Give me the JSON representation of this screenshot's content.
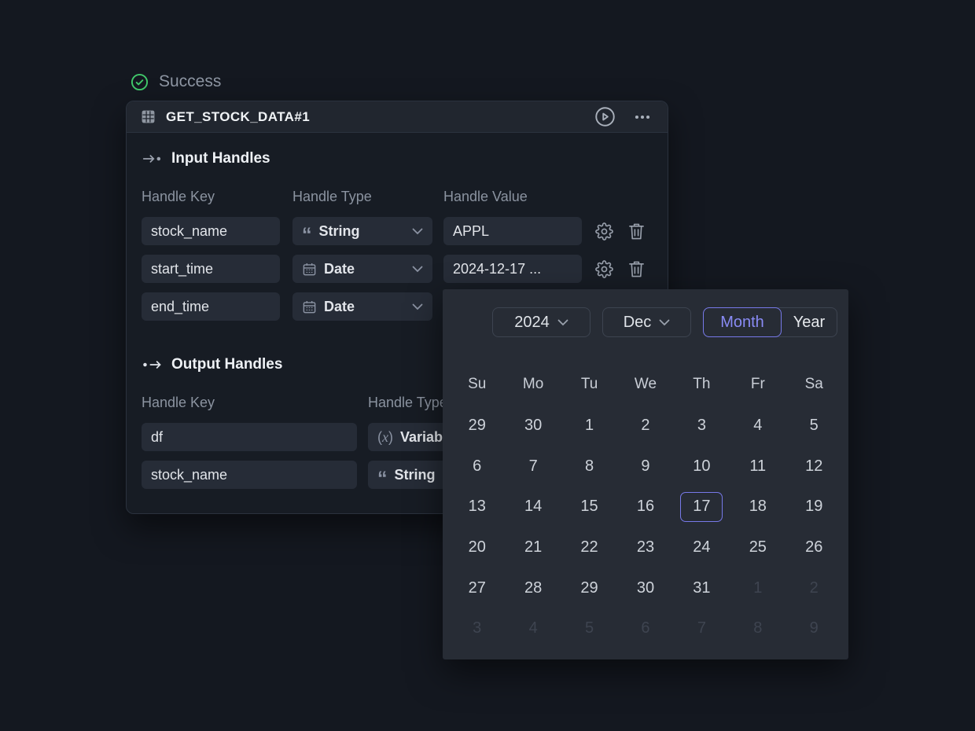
{
  "status": {
    "label": "Success",
    "icon": "check-circle-icon",
    "color": "#41c96b"
  },
  "node": {
    "title": "GET_STOCK_DATA#1",
    "title_icon": "table-icon",
    "toolbar": {
      "run_icon": "play-circle-icon",
      "more_icon": "ellipsis-icon"
    },
    "input_handles": {
      "heading": "Input Handles",
      "heading_icon": "arrow-to-dot-icon",
      "columns": [
        "Handle Key",
        "Handle Type",
        "Handle Value"
      ],
      "rows": [
        {
          "key": "stock_name",
          "type": "String",
          "type_icon": "quote-icon",
          "value": "APPL"
        },
        {
          "key": "start_time",
          "type": "Date",
          "type_icon": "calendar-icon",
          "value": "2024-12-17 ..."
        },
        {
          "key": "end_time",
          "type": "Date",
          "type_icon": "calendar-icon",
          "value": ""
        }
      ],
      "row_action_icons": [
        "gear-icon",
        "trash-icon"
      ]
    },
    "output_handles": {
      "heading": "Output Handles",
      "heading_icon": "dot-to-arrow-icon",
      "columns": [
        "Handle Key",
        "Handle Type"
      ],
      "rows": [
        {
          "key": "df",
          "type": "Variable",
          "type_icon": "variable-icon"
        },
        {
          "key": "stock_name",
          "type": "String",
          "type_icon": "quote-icon"
        }
      ]
    }
  },
  "calendar": {
    "year": "2024",
    "month": "Dec",
    "view_toggle": {
      "options": [
        "Month",
        "Year"
      ],
      "selected": "Month"
    },
    "weekdays": [
      "Su",
      "Mo",
      "Tu",
      "We",
      "Th",
      "Fr",
      "Sa"
    ],
    "selected_day": "17",
    "accent_color": "#7779e9",
    "days": [
      {
        "label": "29"
      },
      {
        "label": "30"
      },
      {
        "label": "1"
      },
      {
        "label": "2"
      },
      {
        "label": "3"
      },
      {
        "label": "4"
      },
      {
        "label": "5"
      },
      {
        "label": "6"
      },
      {
        "label": "7"
      },
      {
        "label": "8"
      },
      {
        "label": "9"
      },
      {
        "label": "10"
      },
      {
        "label": "11"
      },
      {
        "label": "12"
      },
      {
        "label": "13"
      },
      {
        "label": "14"
      },
      {
        "label": "15"
      },
      {
        "label": "16"
      },
      {
        "label": "17",
        "selected": true
      },
      {
        "label": "18"
      },
      {
        "label": "19"
      },
      {
        "label": "20"
      },
      {
        "label": "21"
      },
      {
        "label": "22"
      },
      {
        "label": "23"
      },
      {
        "label": "24"
      },
      {
        "label": "25"
      },
      {
        "label": "26"
      },
      {
        "label": "27"
      },
      {
        "label": "28"
      },
      {
        "label": "29"
      },
      {
        "label": "30"
      },
      {
        "label": "31"
      },
      {
        "label": "1",
        "muted": true
      },
      {
        "label": "2",
        "muted": true
      },
      {
        "label": "3",
        "muted": true
      },
      {
        "label": "4",
        "muted": true
      },
      {
        "label": "5",
        "muted": true
      },
      {
        "label": "6",
        "muted": true
      },
      {
        "label": "7",
        "muted": true
      },
      {
        "label": "8",
        "muted": true
      },
      {
        "label": "9",
        "muted": true
      }
    ]
  }
}
